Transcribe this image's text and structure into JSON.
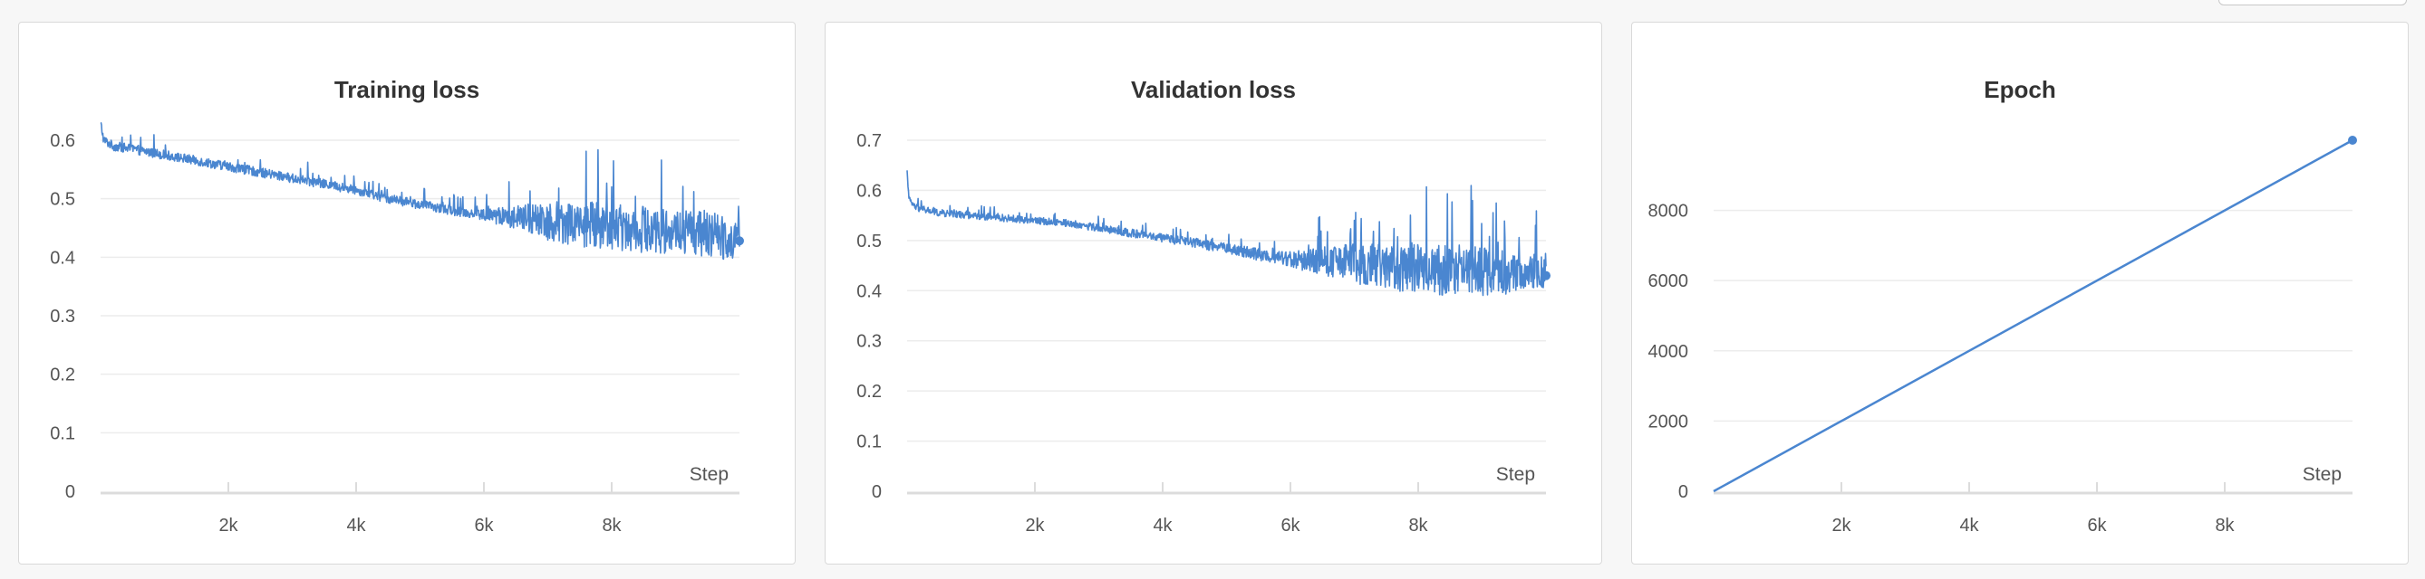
{
  "chart_data": [
    {
      "type": "line",
      "title": "Training loss",
      "xlabel": "Step",
      "ylabel": "",
      "xlim": [
        0,
        10000
      ],
      "ylim": [
        0,
        0.6
      ],
      "x_ticks": [
        2000,
        4000,
        6000,
        8000
      ],
      "x_tick_labels": [
        "2k",
        "4k",
        "6k",
        "8k"
      ],
      "y_ticks": [
        0,
        0.1,
        0.2,
        0.3,
        0.4,
        0.5,
        0.6
      ],
      "y_tick_labels": [
        "0",
        "0.1",
        "0.2",
        "0.3",
        "0.4",
        "0.5",
        "0.6"
      ],
      "grid": true,
      "series": [
        {
          "color": "#4a86d0",
          "x": [
            0,
            50,
            200,
            500,
            1000,
            1500,
            2000,
            2500,
            3000,
            3500,
            4000,
            4500,
            5000,
            5500,
            6000,
            6500,
            7000,
            7500,
            8000,
            8500,
            9000,
            9500,
            10000
          ],
          "y": [
            0.63,
            0.6,
            0.59,
            0.585,
            0.575,
            0.565,
            0.555,
            0.545,
            0.535,
            0.525,
            0.515,
            0.5,
            0.49,
            0.48,
            0.472,
            0.468,
            0.463,
            0.458,
            0.453,
            0.448,
            0.443,
            0.44,
            0.428
          ],
          "noise": [
            0.008,
            0.008,
            0.008,
            0.008,
            0.008,
            0.008,
            0.008,
            0.008,
            0.008,
            0.008,
            0.008,
            0.008,
            0.008,
            0.008,
            0.01,
            0.02,
            0.035,
            0.04,
            0.04,
            0.04,
            0.04,
            0.04,
            0.035
          ]
        }
      ]
    },
    {
      "type": "line",
      "title": "Validation loss",
      "xlabel": "Step",
      "ylabel": "",
      "xlim": [
        0,
        10000
      ],
      "ylim": [
        0,
        0.7
      ],
      "x_ticks": [
        2000,
        4000,
        6000,
        8000
      ],
      "x_tick_labels": [
        "2k",
        "4k",
        "6k",
        "8k"
      ],
      "y_ticks": [
        0,
        0.1,
        0.2,
        0.3,
        0.4,
        0.5,
        0.6,
        0.7
      ],
      "y_tick_labels": [
        "0",
        "0.1",
        "0.2",
        "0.3",
        "0.4",
        "0.5",
        "0.6",
        "0.7"
      ],
      "grid": true,
      "series": [
        {
          "color": "#4a86d0",
          "x": [
            0,
            20,
            60,
            150,
            500,
            1000,
            1500,
            2000,
            2500,
            3000,
            3500,
            4000,
            4500,
            5000,
            5500,
            6000,
            6500,
            7000,
            7500,
            8000,
            8500,
            9000,
            9500,
            10000
          ],
          "y": [
            0.64,
            0.59,
            0.575,
            0.565,
            0.555,
            0.55,
            0.545,
            0.54,
            0.535,
            0.525,
            0.515,
            0.505,
            0.495,
            0.485,
            0.472,
            0.463,
            0.458,
            0.453,
            0.448,
            0.443,
            0.44,
            0.438,
            0.435,
            0.43
          ],
          "noise": [
            0.002,
            0.004,
            0.006,
            0.007,
            0.007,
            0.007,
            0.007,
            0.007,
            0.007,
            0.008,
            0.008,
            0.008,
            0.01,
            0.01,
            0.012,
            0.015,
            0.03,
            0.04,
            0.045,
            0.05,
            0.05,
            0.05,
            0.04,
            0.03
          ]
        }
      ]
    },
    {
      "type": "line",
      "title": "Epoch",
      "xlabel": "Step",
      "ylabel": "",
      "xlim": [
        0,
        10000
      ],
      "ylim": [
        0,
        9999
      ],
      "x_ticks": [
        2000,
        4000,
        6000,
        8000
      ],
      "x_tick_labels": [
        "2k",
        "4k",
        "6k",
        "8k"
      ],
      "y_ticks": [
        0,
        2000,
        4000,
        6000,
        8000
      ],
      "y_tick_labels": [
        "0",
        "2000",
        "4000",
        "6000",
        "8000"
      ],
      "grid": true,
      "series": [
        {
          "color": "#4a86d0",
          "x": [
            0,
            10000
          ],
          "y": [
            0,
            9999
          ],
          "noise": [
            0,
            0
          ]
        }
      ]
    }
  ]
}
